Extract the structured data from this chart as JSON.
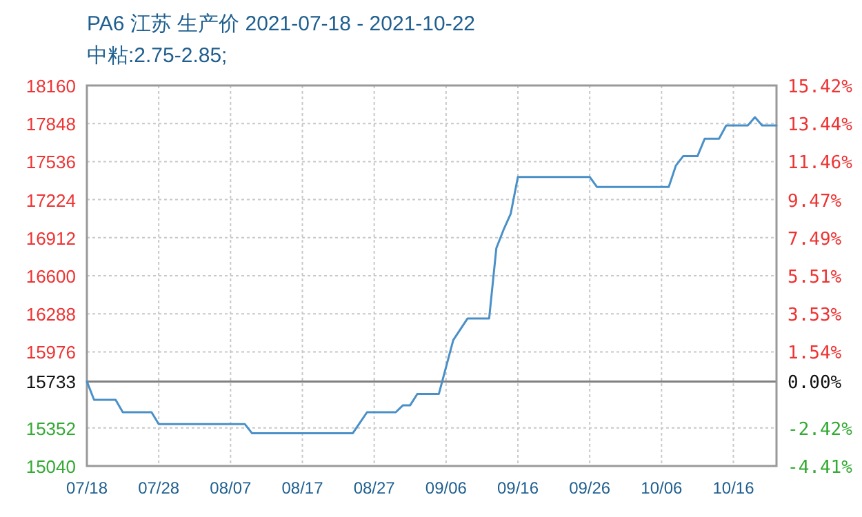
{
  "chart_data": {
    "type": "line",
    "title": "PA6 江苏 生产价 2021-07-18 - 2021-10-22",
    "subtitle": "中粘:2.75-2.85;",
    "x": [
      "2021-07-18",
      "2021-07-19",
      "2021-07-22",
      "2021-07-23",
      "2021-07-27",
      "2021-07-28",
      "2021-08-09",
      "2021-08-10",
      "2021-08-24",
      "2021-08-25",
      "2021-08-26",
      "2021-08-30",
      "2021-08-31",
      "2021-09-01",
      "2021-09-02",
      "2021-09-05",
      "2021-09-07",
      "2021-09-09",
      "2021-09-12",
      "2021-09-13",
      "2021-09-14",
      "2021-09-15",
      "2021-09-16",
      "2021-09-26",
      "2021-09-27",
      "2021-10-07",
      "2021-10-08",
      "2021-10-09",
      "2021-10-11",
      "2021-10-12",
      "2021-10-14",
      "2021-10-15",
      "2021-10-18",
      "2021-10-19",
      "2021-10-20",
      "2021-10-22"
    ],
    "series": [
      {
        "color": "#4a90c8",
        "values": [
          15733,
          15583,
          15583,
          15481,
          15481,
          15383,
          15383,
          15308,
          15308,
          15394,
          15481,
          15481,
          15538,
          15538,
          15631,
          15631,
          16072,
          16250,
          16250,
          16826,
          16976,
          17108,
          17410,
          17410,
          17328,
          17328,
          17504,
          17580,
          17580,
          17723,
          17723,
          17832,
          17832,
          17900,
          17832,
          17832
        ]
      }
    ],
    "xlim": [
      "2021-07-18",
      "2021-10-22"
    ],
    "xticks": [
      {
        "value": "2021-07-18",
        "label": "07/18"
      },
      {
        "value": "2021-07-28",
        "label": "07/28"
      },
      {
        "value": "2021-08-07",
        "label": "08/07"
      },
      {
        "value": "2021-08-17",
        "label": "08/17"
      },
      {
        "value": "2021-08-27",
        "label": "08/27"
      },
      {
        "value": "2021-09-06",
        "label": "09/06"
      },
      {
        "value": "2021-09-16",
        "label": "09/16"
      },
      {
        "value": "2021-09-26",
        "label": "09/26"
      },
      {
        "value": "2021-10-06",
        "label": "10/06"
      },
      {
        "value": "2021-10-16",
        "label": "10/16"
      }
    ],
    "ylim": [
      15040,
      18160
    ],
    "yticks": [
      15040,
      15352,
      15733,
      15976,
      16288,
      16600,
      16912,
      17224,
      17536,
      17848,
      18160
    ],
    "y2lim": [
      -4.41,
      15.42
    ],
    "y2ticks": [
      {
        "value": -4.41,
        "label": "-4.41%"
      },
      {
        "value": -2.42,
        "label": "-2.42%"
      },
      {
        "value": 0,
        "label": "0.00%"
      },
      {
        "value": 1.54,
        "label": "1.54%"
      },
      {
        "value": 3.53,
        "label": "3.53%"
      },
      {
        "value": 5.51,
        "label": "5.51%"
      },
      {
        "value": 7.49,
        "label": "7.49%"
      },
      {
        "value": 9.47,
        "label": "9.47%"
      },
      {
        "value": 11.46,
        "label": "11.46%"
      },
      {
        "value": 13.44,
        "label": "13.44%"
      },
      {
        "value": 15.42,
        "label": "15.42%"
      }
    ],
    "ref_lines": [
      {
        "axis": "y",
        "value": 15733,
        "color": "#808080"
      }
    ],
    "grid": true
  }
}
